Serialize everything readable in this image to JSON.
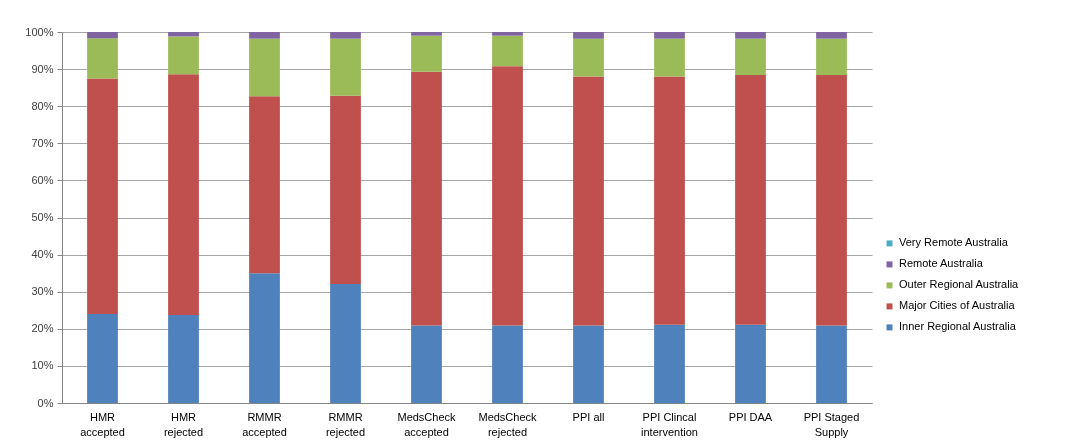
{
  "chart_data": {
    "type": "bar",
    "stacked": true,
    "categories": [
      "HMR accepted",
      "HMR rejected",
      "RMMR accepted",
      "RMMR rejected",
      "MedsCheck accepted",
      "MedsCheck rejected",
      "PPI all",
      "PPI Clincal intervention",
      "PPI DAA",
      "PPI Staged Supply"
    ],
    "series": [
      {
        "name": "Inner Regional Australia",
        "color": "#4f81bd",
        "values": [
          24.0,
          23.7,
          35.0,
          32.1,
          20.9,
          20.9,
          20.9,
          21.1,
          21.1,
          20.9
        ]
      },
      {
        "name": "Major Cities of Australia",
        "color": "#c0504d",
        "values": [
          63.5,
          64.9,
          47.7,
          50.7,
          68.4,
          69.9,
          67.1,
          66.9,
          67.3,
          67.5
        ]
      },
      {
        "name": "Outer Regional Australia",
        "color": "#9bbb59",
        "values": [
          10.8,
          10.2,
          15.5,
          15.4,
          9.7,
          8.2,
          10.2,
          10.2,
          9.8,
          9.8
        ]
      },
      {
        "name": "Remote Australia",
        "color": "#8064a2",
        "values": [
          1.7,
          1.2,
          1.8,
          1.8,
          1.0,
          1.0,
          1.8,
          1.8,
          1.8,
          1.8
        ]
      },
      {
        "name": "Very Remote Australia",
        "color": "#4bacc6",
        "values": [
          null,
          null,
          null,
          null,
          null,
          null,
          null,
          null,
          null,
          null
        ]
      }
    ],
    "ylim": [
      0,
      100
    ],
    "yticks": [
      {
        "value": 0,
        "label": "0%"
      },
      {
        "value": 10,
        "label": "10%"
      },
      {
        "value": 20,
        "label": "20%"
      },
      {
        "value": 30,
        "label": "30%"
      },
      {
        "value": 40,
        "label": "40%"
      },
      {
        "value": 50,
        "label": "50%"
      },
      {
        "value": 60,
        "label": "60%"
      },
      {
        "value": 70,
        "label": "70%"
      },
      {
        "value": 80,
        "label": "80%"
      },
      {
        "value": 90,
        "label": "90%"
      },
      {
        "value": 100,
        "label": "100%"
      }
    ],
    "grid": "y",
    "legend": "right"
  }
}
